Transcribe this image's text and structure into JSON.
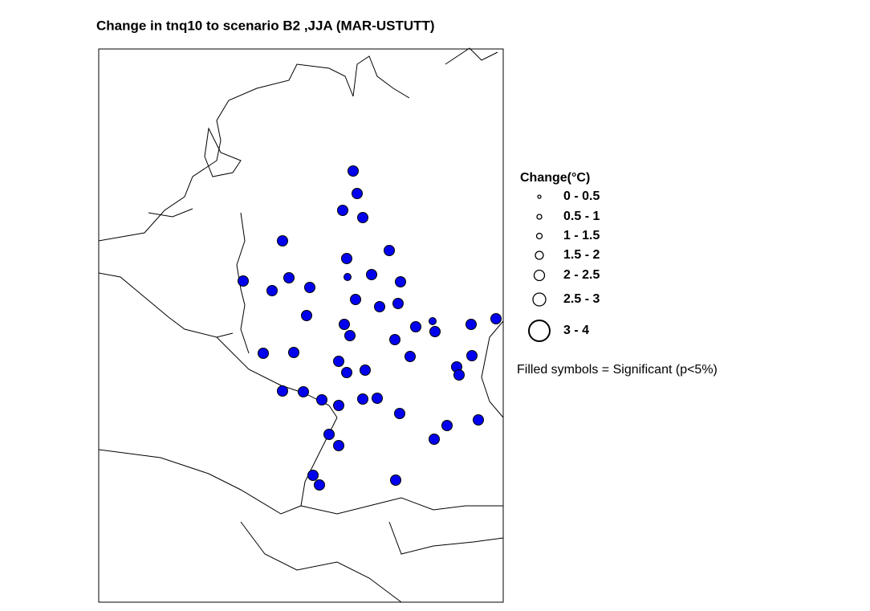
{
  "title": "Change in tnq10 to scenario B2 ,JJA (MAR-USTUTT)",
  "legend": {
    "title": "Change(°C)",
    "items": [
      "0 - 0.5",
      "0.5 - 1",
      "1 - 1.5",
      "1.5 - 2",
      "2 - 2.5",
      "2.5 - 3",
      "3 - 4"
    ]
  },
  "note": "Filled symbols = Significant (p<5%)"
}
